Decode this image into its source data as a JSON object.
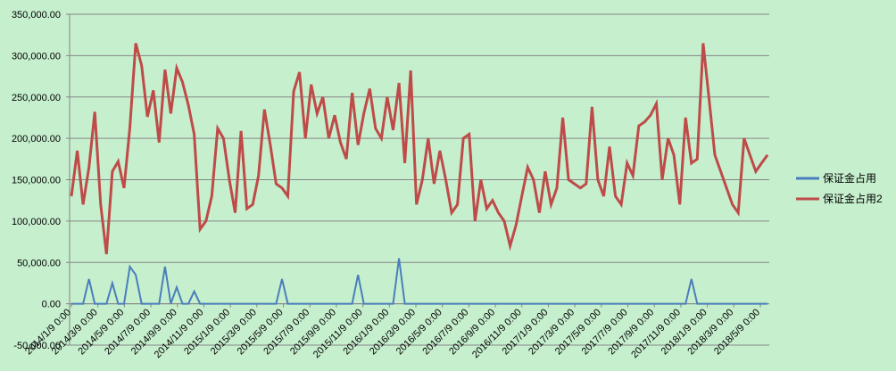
{
  "chart_data": {
    "type": "line",
    "title": "",
    "xlabel": "",
    "ylabel": "",
    "ylim": [
      -50000,
      350000
    ],
    "y_ticks": [
      "-50,000.00",
      "0.00",
      "50,000.00",
      "100,000.00",
      "150,000.00",
      "200,000.00",
      "250,000.00",
      "300,000.00",
      "350,000.00"
    ],
    "x_tick_labels": [
      "2014/1/9 0:00",
      "2014/3/9 0:00",
      "2014/5/9 0:00",
      "2014/7/9 0:00",
      "2014/9/9 0:00",
      "2014/11/9 0:00",
      "2015/1/9 0:00",
      "2015/3/9 0:00",
      "2015/5/9 0:00",
      "2015/7/9 0:00",
      "2015/9/9 0:00",
      "2015/11/9 0:00",
      "2016/1/9 0:00",
      "2016/3/9 0:00",
      "2016/5/9 0:00",
      "2016/7/9 0:00",
      "2016/9/9 0:00",
      "2016/11/9 0:00",
      "2017/1/9 0:00",
      "2017/3/9 0:00",
      "2017/5/9 0:00",
      "2017/7/9 0:00",
      "2017/9/9 0:00",
      "2017/11/9 0:00",
      "2018/1/9 0:00",
      "2018/3/9 0:00",
      "2018/5/9 0:00"
    ],
    "grid": true,
    "legend": "right",
    "series": [
      {
        "name": "保证金占用",
        "color": "#4a7ebb",
        "values": [
          0,
          0,
          0,
          30000,
          0,
          0,
          0,
          25000,
          0,
          0,
          45000,
          35000,
          0,
          0,
          0,
          0,
          45000,
          0,
          20000,
          0,
          0,
          15000,
          0,
          0,
          0,
          0,
          0,
          0,
          0,
          0,
          0,
          0,
          0,
          0,
          0,
          0,
          30000,
          0,
          0,
          0,
          0,
          0,
          0,
          0,
          0,
          0,
          0,
          0,
          0,
          35000,
          0,
          0,
          0,
          0,
          0,
          0,
          55000,
          0,
          0,
          0,
          0,
          0,
          0,
          0,
          0,
          0,
          0,
          0,
          0,
          0,
          0,
          0,
          0,
          0,
          0,
          0,
          0,
          0,
          0,
          0,
          0,
          0,
          0,
          0,
          0,
          0,
          0,
          0,
          0,
          0,
          0,
          0,
          0,
          0,
          0,
          0,
          0,
          0,
          0,
          0,
          0,
          0,
          0,
          0,
          0,
          0,
          30000,
          0,
          0,
          0,
          0,
          0,
          0,
          0,
          0,
          0,
          0,
          0,
          0,
          0
        ]
      },
      {
        "name": "保证金占用2",
        "color": "#be4b48",
        "values": [
          130000,
          185000,
          120000,
          165000,
          232000,
          120000,
          60000,
          160000,
          172000,
          140000,
          213000,
          315000,
          288000,
          226000,
          258000,
          195000,
          283000,
          230000,
          285000,
          268000,
          240000,
          205000,
          90000,
          100000,
          130000,
          212000,
          200000,
          150000,
          110000,
          209000,
          115000,
          120000,
          155000,
          235000,
          192000,
          145000,
          140000,
          130000,
          257000,
          280000,
          200000,
          265000,
          230000,
          250000,
          200000,
          228000,
          195000,
          175000,
          255000,
          192000,
          230000,
          260000,
          212000,
          200000,
          250000,
          210000,
          267000,
          170000,
          282000,
          120000,
          150000,
          200000,
          145000,
          185000,
          150000,
          110000,
          120000,
          200000,
          205000,
          100000,
          150000,
          115000,
          125000,
          110000,
          100000,
          70000,
          95000,
          130000,
          165000,
          150000,
          110000,
          160000,
          120000,
          140000,
          225000,
          150000,
          145000,
          140000,
          145000,
          238000,
          150000,
          130000,
          190000,
          130000,
          120000,
          170000,
          155000,
          215000,
          220000,
          228000,
          242000,
          150000,
          200000,
          180000,
          120000,
          225000,
          170000,
          175000,
          315000,
          248000,
          180000,
          160000,
          140000,
          120000,
          110000,
          200000,
          180000,
          160000,
          170000,
          180000
        ]
      }
    ]
  }
}
